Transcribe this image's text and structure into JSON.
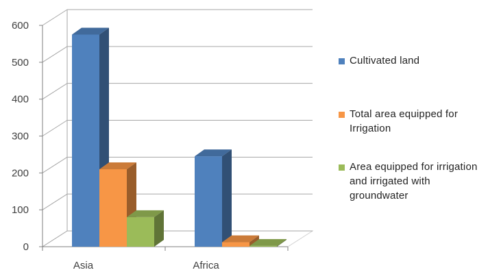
{
  "chart_data": {
    "type": "bar",
    "subtype": "3d-clustered-column",
    "categories": [
      "Asia",
      "Africa"
    ],
    "series": [
      {
        "name": "Cultivated land",
        "values": [
          575,
          245
        ],
        "color": "#4F81BD"
      },
      {
        "name": "Total area equipped for Irrigation",
        "values": [
          210,
          12
        ],
        "color": "#F79646"
      },
      {
        "name": "Area equipped for irrigation and irrigated with groundwater",
        "values": [
          80,
          2
        ],
        "color": "#9BBB59"
      }
    ],
    "title": "",
    "xlabel": "",
    "ylabel": "",
    "ylim": [
      0,
      600
    ],
    "yticks": [
      "0",
      "100",
      "200",
      "300",
      "400",
      "500",
      "600"
    ],
    "grid": true,
    "legend_position": "right"
  }
}
